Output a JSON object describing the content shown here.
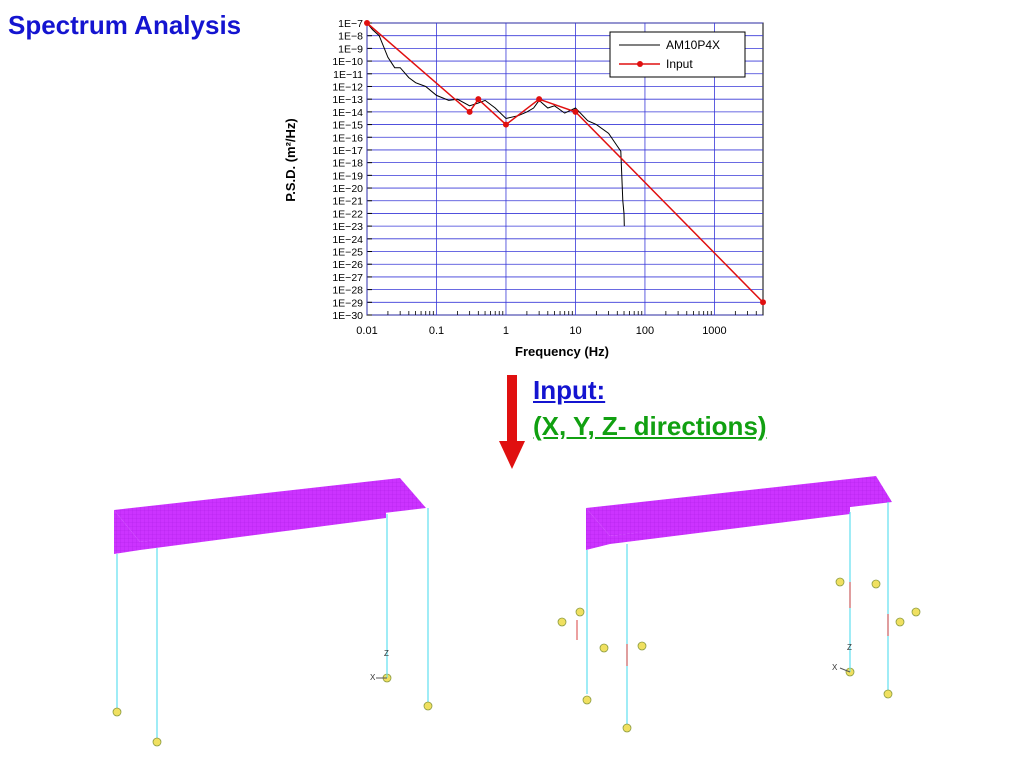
{
  "page": {
    "title": "Spectrum Analysis"
  },
  "chart_data": {
    "type": "line",
    "xlabel": "Frequency (Hz)",
    "ylabel": "P.S.D. (m²/Hz)",
    "x_scale": "log",
    "y_scale": "log",
    "xlim": [
      0.01,
      5000
    ],
    "ylim": [
      1e-30,
      1e-07
    ],
    "grid": true,
    "legend_position": "top-right",
    "x_ticks": [
      "0.01",
      "0.1",
      "1",
      "10",
      "100",
      "1000"
    ],
    "y_ticks": [
      "1E−7",
      "1E−8",
      "1E−9",
      "1E−10",
      "1E−11",
      "1E−12",
      "1E−13",
      "1E−14",
      "1E−15",
      "1E−16",
      "1E−17",
      "1E−18",
      "1E−19",
      "1E−20",
      "1E−21",
      "1E−22",
      "1E−23",
      "1E−24",
      "1E−25",
      "1E−26",
      "1E−27",
      "1E−28",
      "1E−29",
      "1E−30"
    ],
    "series": [
      {
        "name": "AM10P4X",
        "color": "#000000",
        "marker": "none",
        "x": [
          0.01,
          0.012,
          0.015,
          0.02,
          0.025,
          0.03,
          0.04,
          0.05,
          0.07,
          0.1,
          0.15,
          0.2,
          0.3,
          0.4,
          0.5,
          0.7,
          1,
          1.5,
          2,
          2.5,
          3,
          4,
          5,
          7,
          10,
          15,
          20,
          30,
          40,
          45,
          48,
          50,
          50.5
        ],
        "y": [
          1e-07,
          3e-08,
          1e-08,
          2e-10,
          3e-11,
          3e-11,
          5e-12,
          2e-12,
          1e-12,
          2e-13,
          8e-14,
          1e-13,
          3e-14,
          5e-14,
          8e-14,
          2e-14,
          3e-15,
          5e-15,
          1e-14,
          2e-14,
          8e-14,
          2e-14,
          3e-14,
          8e-15,
          2e-14,
          2e-15,
          1e-15,
          2e-16,
          2e-17,
          8e-18,
          1e-21,
          1e-22,
          1e-23
        ]
      },
      {
        "name": "Input",
        "color": "#e01010",
        "marker": "circle",
        "x": [
          0.01,
          0.3,
          0.4,
          1,
          3,
          10,
          5000
        ],
        "y": [
          1e-07,
          1e-14,
          1e-13,
          1e-15,
          1e-13,
          1e-14,
          1e-29
        ]
      }
    ]
  },
  "annotation": {
    "line1": "Input:",
    "line2": "(X, Y, Z- directions)",
    "arrow_color": "#e01010"
  },
  "models": {
    "fill_color": "#cc33ff",
    "column_color": "#60e0f0",
    "axis_labels": {
      "x": "X",
      "z": "Z"
    }
  }
}
